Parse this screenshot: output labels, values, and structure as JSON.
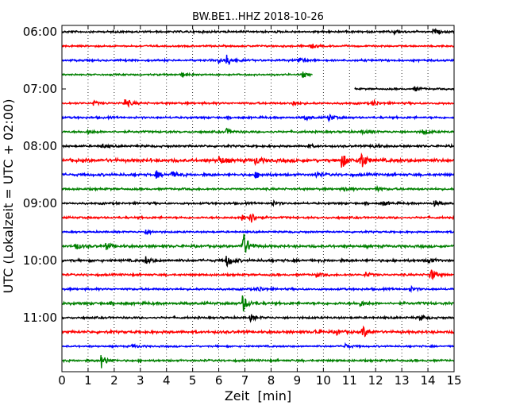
{
  "chart_data": {
    "type": "line",
    "title": "BW.BE1..HHZ 2018-10-26",
    "xlabel": "Zeit  [min]",
    "ylabel": "UTC (Lokalzeit = UTC + 02:00)",
    "xlim": [
      0,
      15
    ],
    "x_ticks": [
      "0",
      "1",
      "2",
      "3",
      "4",
      "5",
      "6",
      "7",
      "8",
      "9",
      "10",
      "11",
      "12",
      "13",
      "14",
      "15"
    ],
    "y_ticks": [
      "06:00",
      "07:00",
      "08:00",
      "09:00",
      "10:00",
      "11:00"
    ],
    "grid": "vertical dotted",
    "trace_colors": [
      "#000000",
      "#ff0000",
      "#0000ff",
      "#008000"
    ],
    "traces": [
      {
        "start": "06:00",
        "spikes": [
          [
            12.7,
            0.35
          ],
          [
            14.2,
            0.35
          ]
        ],
        "noise": 0.12
      },
      {
        "start": "06:15",
        "spikes": [
          [
            9.5,
            0.35
          ]
        ],
        "noise": 0.1
      },
      {
        "start": "06:30",
        "spikes": [
          [
            6.3,
            0.7
          ],
          [
            9.0,
            0.5
          ],
          [
            6.0,
            0.3
          ]
        ],
        "noise": 0.12
      },
      {
        "start": "06:45",
        "spikes": [
          [
            4.6,
            0.35
          ],
          [
            9.2,
            0.35
          ]
        ],
        "noise": 0.1,
        "end_min": 9.6
      },
      {
        "start": "07:00",
        "spikes": [
          [
            13.5,
            0.35
          ]
        ],
        "noise": 0.1,
        "start_min": 11.2
      },
      {
        "start": "07:15",
        "spikes": [
          [
            2.4,
            0.7
          ],
          [
            8.8,
            0.4
          ],
          [
            11.9,
            0.4
          ],
          [
            1.2,
            0.3
          ]
        ],
        "noise": 0.12
      },
      {
        "start": "07:30",
        "spikes": [
          [
            10.2,
            0.5
          ],
          [
            9.3,
            0.3
          ]
        ],
        "noise": 0.12
      },
      {
        "start": "07:45",
        "spikes": [
          [
            6.3,
            0.4
          ],
          [
            13.8,
            0.4
          ],
          [
            1.0,
            0.3
          ],
          [
            11.5,
            0.3
          ]
        ],
        "noise": 0.12
      },
      {
        "start": "08:00",
        "spikes": [
          [
            11.9,
            0.4
          ],
          [
            1.5,
            0.3
          ],
          [
            9.4,
            0.3
          ]
        ],
        "noise": 0.12
      },
      {
        "start": "08:15",
        "spikes": [
          [
            11.4,
            1.6
          ],
          [
            10.7,
            1.1
          ],
          [
            6.0,
            0.6
          ],
          [
            7.4,
            0.5
          ]
        ],
        "noise": 0.2
      },
      {
        "start": "08:30",
        "spikes": [
          [
            3.6,
            0.5
          ],
          [
            4.2,
            0.4
          ],
          [
            7.4,
            0.4
          ],
          [
            9.7,
            0.4
          ]
        ],
        "noise": 0.15
      },
      {
        "start": "08:45",
        "spikes": [
          [
            10.8,
            0.4
          ],
          [
            12.0,
            0.3
          ]
        ],
        "noise": 0.12
      },
      {
        "start": "09:00",
        "spikes": [
          [
            14.2,
            0.5
          ],
          [
            8.0,
            0.4
          ],
          [
            12.3,
            0.3
          ]
        ],
        "noise": 0.12
      },
      {
        "start": "09:15",
        "spikes": [
          [
            7.2,
            0.8
          ],
          [
            6.9,
            0.5
          ]
        ],
        "noise": 0.12
      },
      {
        "start": "09:30",
        "spikes": [
          [
            3.2,
            0.45
          ]
        ],
        "noise": 0.1
      },
      {
        "start": "09:45",
        "spikes": [
          [
            6.9,
            2.4
          ],
          [
            0.5,
            0.5
          ],
          [
            1.7,
            0.5
          ]
        ],
        "noise": 0.15
      },
      {
        "start": "10:00",
        "spikes": [
          [
            6.3,
            0.9
          ],
          [
            3.2,
            0.5
          ],
          [
            14.0,
            0.4
          ]
        ],
        "noise": 0.15
      },
      {
        "start": "10:15",
        "spikes": [
          [
            14.1,
            0.9
          ],
          [
            11.6,
            0.4
          ],
          [
            9.7,
            0.3
          ]
        ],
        "noise": 0.12
      },
      {
        "start": "10:30",
        "spikes": [
          [
            7.5,
            0.4
          ],
          [
            13.3,
            0.35
          ]
        ],
        "noise": 0.12
      },
      {
        "start": "10:45",
        "spikes": [
          [
            6.9,
            1.3
          ],
          [
            11.4,
            0.4
          ]
        ],
        "noise": 0.15
      },
      {
        "start": "11:00",
        "spikes": [
          [
            7.2,
            0.45
          ],
          [
            13.7,
            0.4
          ]
        ],
        "noise": 0.12
      },
      {
        "start": "11:15",
        "spikes": [
          [
            11.5,
            0.9
          ],
          [
            10.5,
            0.4
          ],
          [
            9.7,
            0.3
          ]
        ],
        "noise": 0.15
      },
      {
        "start": "11:30",
        "spikes": [
          [
            10.8,
            0.4
          ],
          [
            2.7,
            0.3
          ]
        ],
        "noise": 0.1
      },
      {
        "start": "11:45",
        "spikes": [
          [
            1.5,
            1.0
          ]
        ],
        "noise": 0.12
      }
    ]
  }
}
